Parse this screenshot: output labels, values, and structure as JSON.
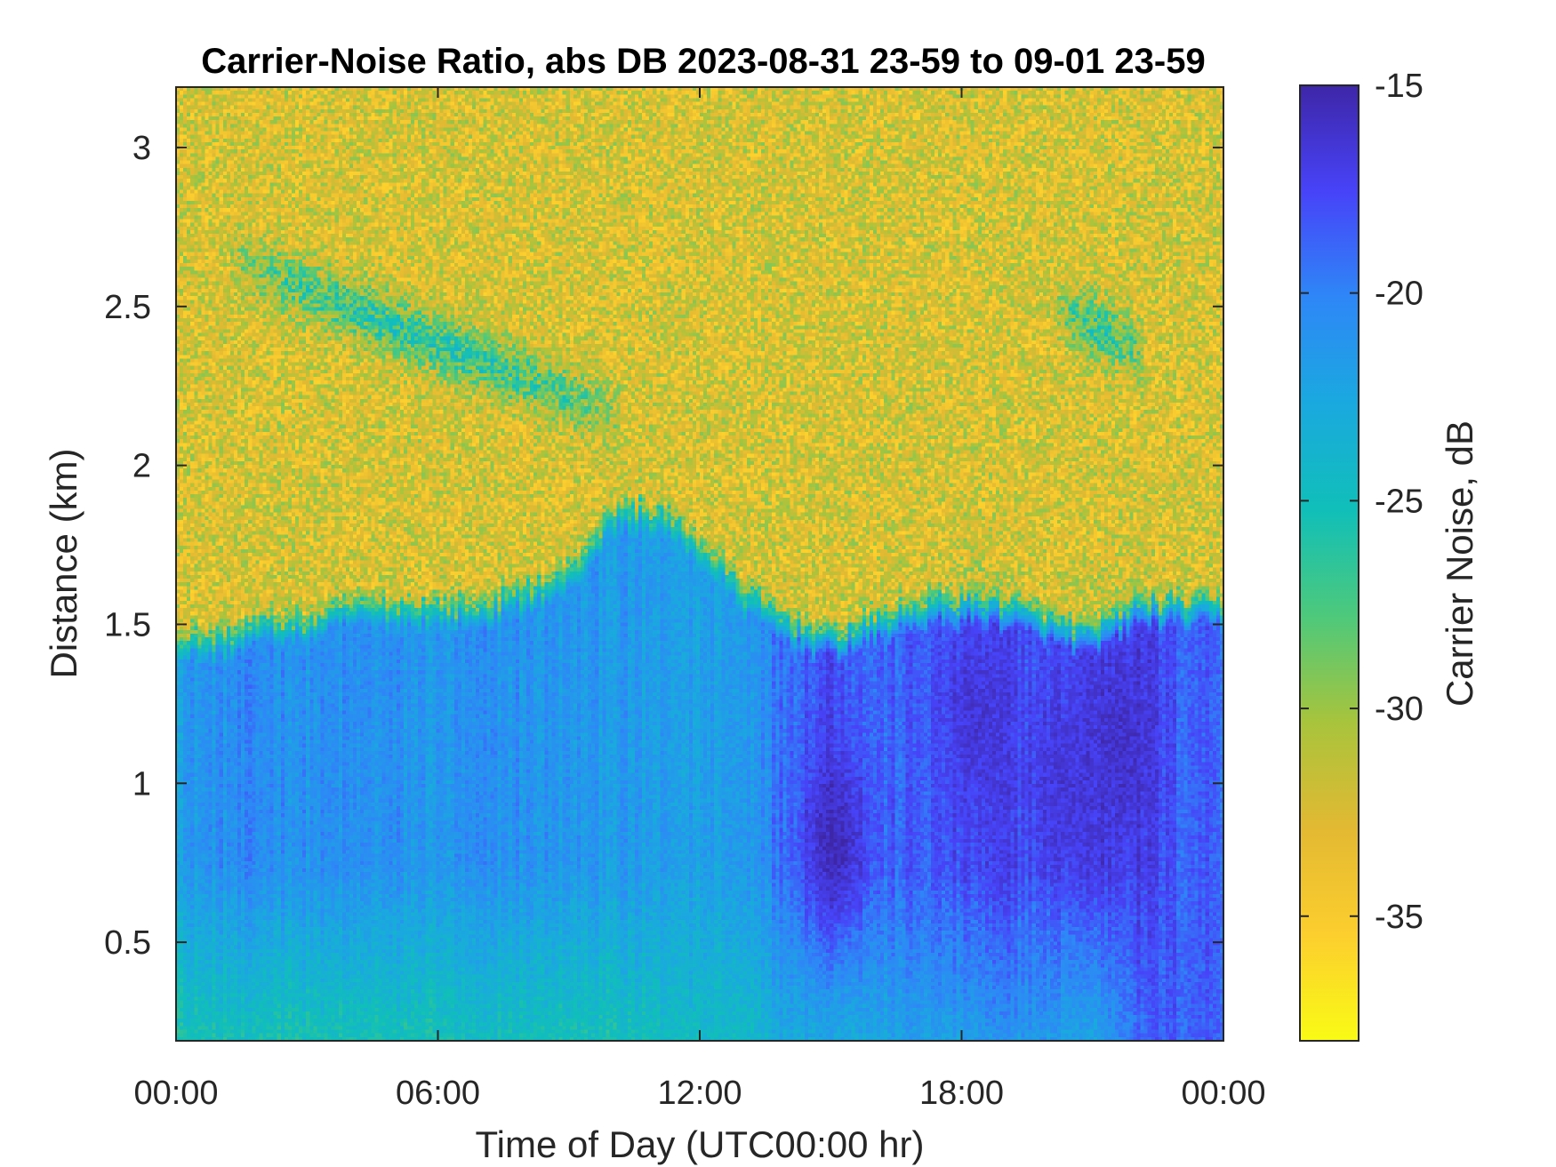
{
  "chart_data": {
    "type": "heatmap",
    "title": "Carrier-Noise Ratio, abs DB 2023-08-31 23-59 to 09-01 23-59",
    "xlabel": "Time of Day (UTC00:00 hr)",
    "ylabel": "Distance (km)",
    "colorbar_label": "Carrier Noise, dB",
    "xlim_hours": [
      0,
      24
    ],
    "ylim_km": [
      0.19,
      3.19
    ],
    "clim_db": [
      -38,
      -15
    ],
    "x_ticks": [
      {
        "value": 0,
        "label": "00:00"
      },
      {
        "value": 6,
        "label": "06:00"
      },
      {
        "value": 12,
        "label": "12:00"
      },
      {
        "value": 18,
        "label": "18:00"
      },
      {
        "value": 24,
        "label": "00:00"
      }
    ],
    "y_ticks": [
      {
        "value": 0.5,
        "label": "0.5"
      },
      {
        "value": 1,
        "label": "1"
      },
      {
        "value": 1.5,
        "label": "1.5"
      },
      {
        "value": 2,
        "label": "2"
      },
      {
        "value": 2.5,
        "label": "2.5"
      },
      {
        "value": 3,
        "label": "3"
      }
    ],
    "c_ticks": [
      {
        "value": -15,
        "label": "-15"
      },
      {
        "value": -20,
        "label": "-20"
      },
      {
        "value": -25,
        "label": "-25"
      },
      {
        "value": -30,
        "label": "-30"
      },
      {
        "value": -35,
        "label": "-35"
      }
    ],
    "colormap": [
      "#3e26a8",
      "#4743f8",
      "#2e87f7",
      "#1aa9df",
      "#10bfb9",
      "#4ec97b",
      "#a8c43c",
      "#e3b932",
      "#fcce2e",
      "#f9fb15"
    ],
    "time_hours": [
      0,
      1,
      2,
      3,
      4,
      5,
      6,
      7,
      8,
      9,
      10,
      11,
      12,
      13,
      14,
      15,
      16,
      17,
      18,
      19,
      20,
      21,
      22,
      23,
      24
    ],
    "boundary_layer_top_km": [
      1.45,
      1.45,
      1.5,
      1.5,
      1.55,
      1.55,
      1.55,
      1.55,
      1.6,
      1.65,
      1.85,
      1.85,
      1.75,
      1.6,
      1.5,
      1.45,
      1.5,
      1.55,
      1.55,
      1.55,
      1.5,
      1.45,
      1.55,
      1.55,
      1.55
    ],
    "boundary_layer_db": [
      -21.5,
      -21,
      -20.5,
      -21,
      -21,
      -21,
      -21.5,
      -21,
      -21,
      -21.5,
      -21.5,
      -22,
      -22,
      -21.5,
      -19,
      -17.5,
      -19,
      -18.5,
      -18,
      -17.5,
      -18,
      -17,
      -17,
      -18.5,
      -18.5
    ],
    "surface_layer_db": [
      -25.5,
      -25.5,
      -25.5,
      -25.5,
      -25.5,
      -25.5,
      -25.5,
      -25,
      -25,
      -25.5,
      -25.5,
      -25,
      -24.5,
      -24.5,
      -22.5,
      -22.5,
      -22.5,
      -22,
      -22,
      -21,
      -21.5,
      -22.5,
      -19,
      -18.5,
      -18.5
    ],
    "upper_air_db": -32.5,
    "intense_cores": [
      {
        "t_hours": 15.1,
        "d_km": 0.82,
        "db": -15.5
      },
      {
        "t_hours": 18.3,
        "d_km": 1.2,
        "db": -16.5
      },
      {
        "t_hours": 20.3,
        "d_km": 1.0,
        "db": -16.5
      },
      {
        "t_hours": 21.7,
        "d_km": 1.12,
        "db": -16
      }
    ],
    "elevated_layers": [
      {
        "t_start_hours": 1.2,
        "t_end_hours": 10.2,
        "d_start_km": 2.65,
        "d_end_km": 2.15,
        "db": -26.5
      },
      {
        "t_start_hours": 20.2,
        "t_end_hours": 22.2,
        "d_start_km": 2.5,
        "d_end_km": 2.35,
        "db": -27
      }
    ]
  }
}
